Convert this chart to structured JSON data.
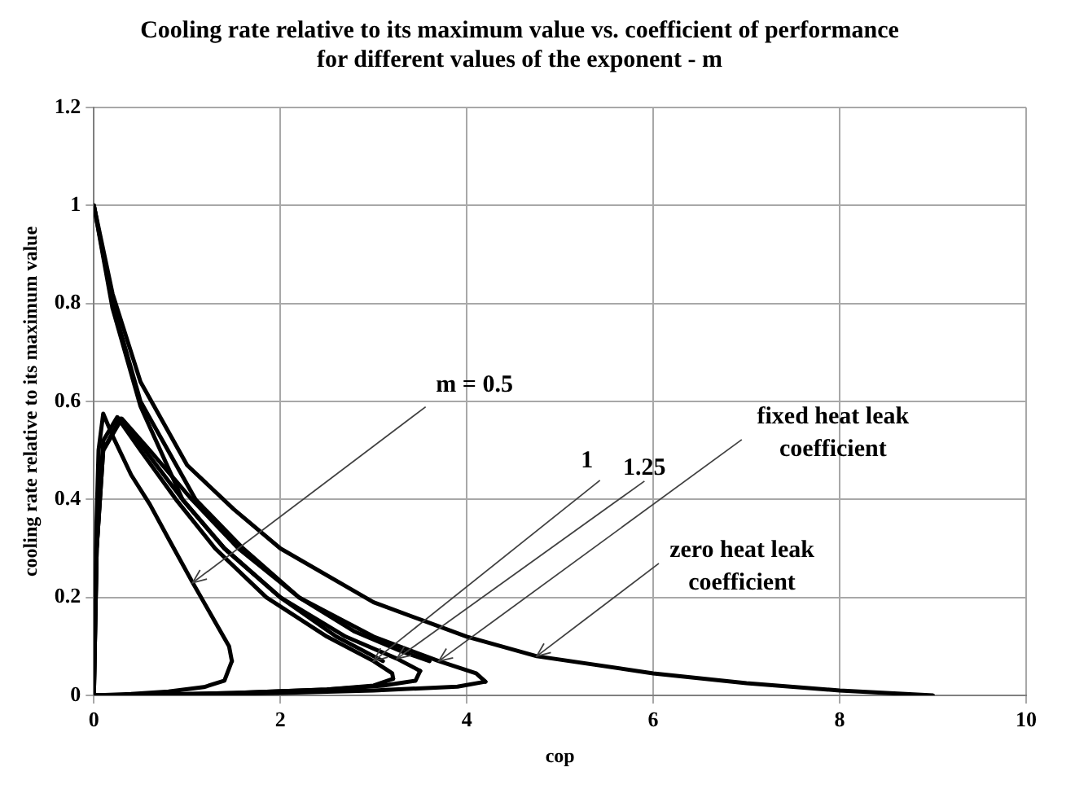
{
  "chart_data": {
    "type": "line",
    "title": "Cooling rate relative to its maximum value vs. coefficient of performance for different values of the exponent - m",
    "xlabel": "cop",
    "ylabel": "cooling rate relative to its maximum value",
    "xlim": [
      0,
      10
    ],
    "xticks": [
      0,
      2,
      4,
      6,
      8,
      10
    ],
    "ylim": [
      0,
      1.2
    ],
    "yticks": [
      0,
      0.2,
      0.4,
      0.6,
      0.8,
      1,
      1.2
    ],
    "grid": true,
    "legend": false,
    "marker": "none",
    "line_style": "solid",
    "series": [
      {
        "color": "#000000",
        "x": [
          0,
          0.2,
          0.5,
          1,
          1.5,
          2,
          3,
          4,
          4.75,
          6,
          7,
          8,
          9
        ],
        "values": [
          1,
          0.82,
          0.64,
          0.47,
          0.38,
          0.3,
          0.19,
          0.12,
          0.08,
          0.045,
          0.025,
          0.01,
          0
        ]
      },
      {
        "color": "#000000",
        "x": [
          0,
          0.2,
          0.5,
          1.09,
          1.6,
          2.2,
          2.8,
          3.3,
          3.6
        ],
        "values": [
          1,
          0.8,
          0.6,
          0.4,
          0.3,
          0.2,
          0.13,
          0.09,
          0.07
        ]
      },
      {
        "color": "#000000",
        "x": [
          0,
          0.2,
          0.5,
          0.95,
          1.4,
          2.0,
          2.6,
          3.1
        ],
        "values": [
          1,
          0.79,
          0.59,
          0.4,
          0.3,
          0.2,
          0.12,
          0.07
        ]
      },
      {
        "color": "#000000",
        "x": [
          0,
          0.02,
          0.05,
          0.1,
          0.2,
          0.4,
          0.6,
          0.8,
          1.06,
          1.3,
          1.45,
          1.48
        ],
        "values": [
          0,
          0.3,
          0.5,
          0.575,
          0.53,
          0.45,
          0.39,
          0.32,
          0.23,
          0.15,
          0.1,
          0.07
        ]
      },
      {
        "color": "#000000",
        "x": [
          0,
          0.4,
          0.8,
          1.18,
          1.4,
          1.48
        ],
        "values": [
          0,
          0.003,
          0.008,
          0.017,
          0.03,
          0.07
        ]
      },
      {
        "color": "#000000",
        "x": [
          0,
          0.03,
          0.1,
          0.25,
          0.5,
          0.88,
          1.3,
          1.85,
          2.5,
          3.0,
          3.2,
          3.21
        ],
        "values": [
          0,
          0.3,
          0.52,
          0.568,
          0.5,
          0.4,
          0.3,
          0.2,
          0.12,
          0.07,
          0.045,
          0.034
        ]
      },
      {
        "color": "#000000",
        "x": [
          0,
          0.5,
          1.5,
          2.5,
          3.0,
          3.21
        ],
        "values": [
          0,
          0.001,
          0.005,
          0.012,
          0.02,
          0.034
        ]
      },
      {
        "color": "#000000",
        "x": [
          0,
          0.03,
          0.1,
          0.28,
          0.55,
          0.95,
          1.4,
          2.0,
          2.7,
          3.25,
          3.5
        ],
        "values": [
          0,
          0.3,
          0.5,
          0.565,
          0.5,
          0.4,
          0.3,
          0.2,
          0.12,
          0.075,
          0.05
        ]
      },
      {
        "color": "#000000",
        "x": [
          0,
          0.5,
          1.5,
          2.5,
          3.1,
          3.45,
          3.5
        ],
        "values": [
          0,
          0.001,
          0.005,
          0.012,
          0.02,
          0.03,
          0.05
        ]
      },
      {
        "color": "#000000",
        "x": [
          0,
          0.03,
          0.1,
          0.3,
          0.6,
          1.05,
          1.55,
          2.2,
          3.0,
          3.7,
          4.1,
          4.2
        ],
        "values": [
          0,
          0.3,
          0.5,
          0.565,
          0.5,
          0.4,
          0.3,
          0.2,
          0.12,
          0.07,
          0.045,
          0.028
        ]
      },
      {
        "color": "#000000",
        "x": [
          0,
          1.0,
          2.0,
          3.0,
          3.9,
          4.2
        ],
        "values": [
          0,
          0.002,
          0.005,
          0.01,
          0.018,
          0.028
        ]
      }
    ],
    "annotations": [
      {
        "text": "m = 0.5",
        "x": 1.06,
        "y": 0.23
      },
      {
        "text": "1",
        "x": 3.0,
        "y": 0.07
      },
      {
        "text": "1.25",
        "x": 3.25,
        "y": 0.075
      },
      {
        "text": "fixed heat leak coefficient",
        "x": 3.7,
        "y": 0.07
      },
      {
        "text": "zero heat leak coefficient",
        "x": 4.75,
        "y": 0.08
      }
    ]
  }
}
